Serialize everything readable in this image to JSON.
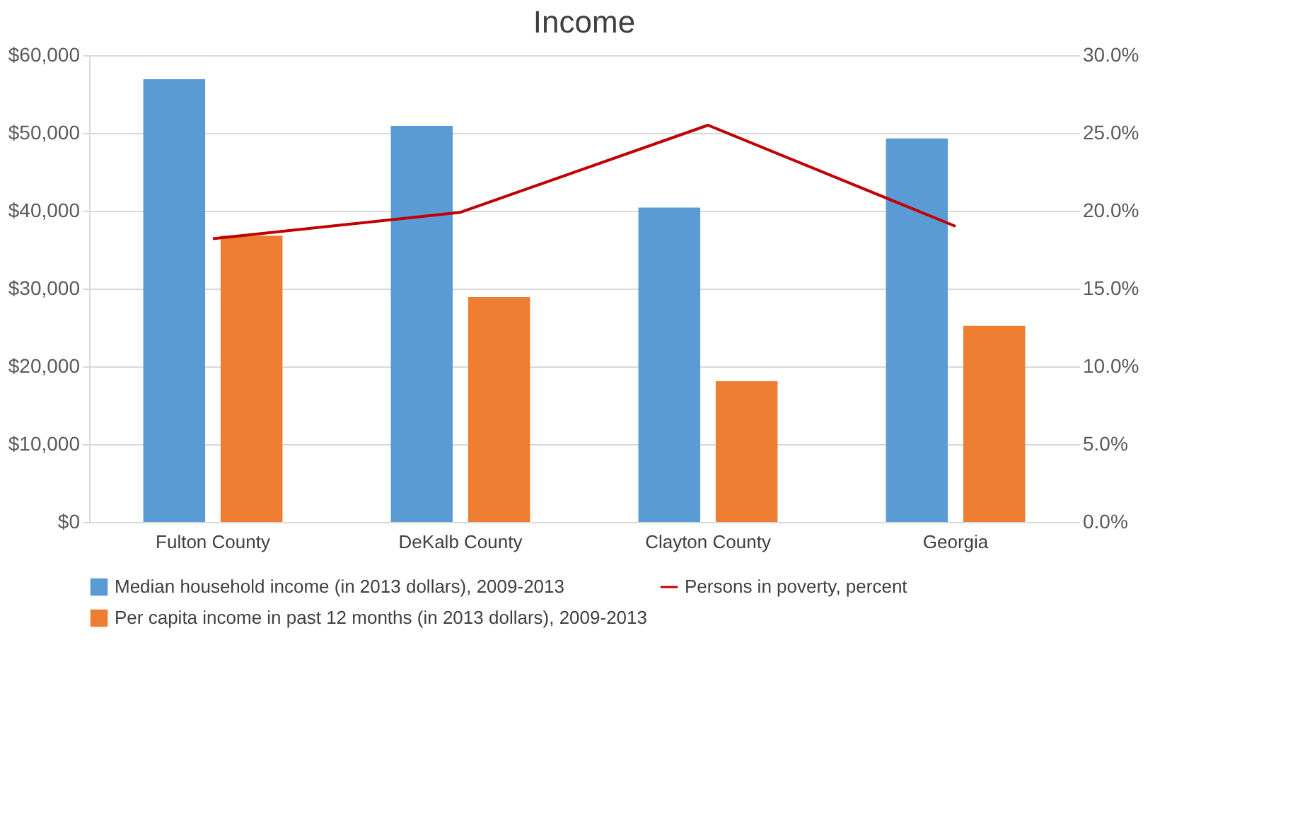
{
  "chart_data": {
    "type": "bar",
    "title": "Income",
    "categories": [
      "Fulton County",
      "DeKalb County",
      "Clayton County",
      "Georgia"
    ],
    "series": [
      {
        "name": "Median household income (in 2013 dollars), 2009-2013",
        "color": "#5b9bd5",
        "values": [
          56900,
          50900,
          40400,
          49300
        ]
      },
      {
        "name": "Per capita income in past 12 months (in 2013 dollars), 2009-2013",
        "color": "#ed7d31",
        "values": [
          36800,
          28900,
          18100,
          25200
        ]
      },
      {
        "name": "Persons in poverty, percent",
        "color": "#c00000",
        "type": "line",
        "axis": "y2",
        "values": [
          18.2,
          19.9,
          25.5,
          19.0
        ]
      }
    ],
    "ylim": [
      0,
      60000
    ],
    "yticks": [
      {
        "value": 0,
        "label": "$0"
      },
      {
        "value": 10000,
        "label": "$10,000"
      },
      {
        "value": 20000,
        "label": "$20,000"
      },
      {
        "value": 30000,
        "label": "$30,000"
      },
      {
        "value": 40000,
        "label": "$40,000"
      },
      {
        "value": 50000,
        "label": "$50,000"
      },
      {
        "value": 60000,
        "label": "$60,000"
      }
    ],
    "y2lim": [
      0,
      30
    ],
    "y2ticks": [
      {
        "value": 0,
        "label": "0.0%"
      },
      {
        "value": 5,
        "label": "5.0%"
      },
      {
        "value": 10,
        "label": "10.0%"
      },
      {
        "value": 15,
        "label": "15.0%"
      },
      {
        "value": 20,
        "label": "20.0%"
      },
      {
        "value": 25,
        "label": "25.0%"
      },
      {
        "value": 30,
        "label": "30.0%"
      }
    ],
    "grid": "y",
    "legend": "bottom",
    "marker": "none",
    "line_style": "solid"
  }
}
